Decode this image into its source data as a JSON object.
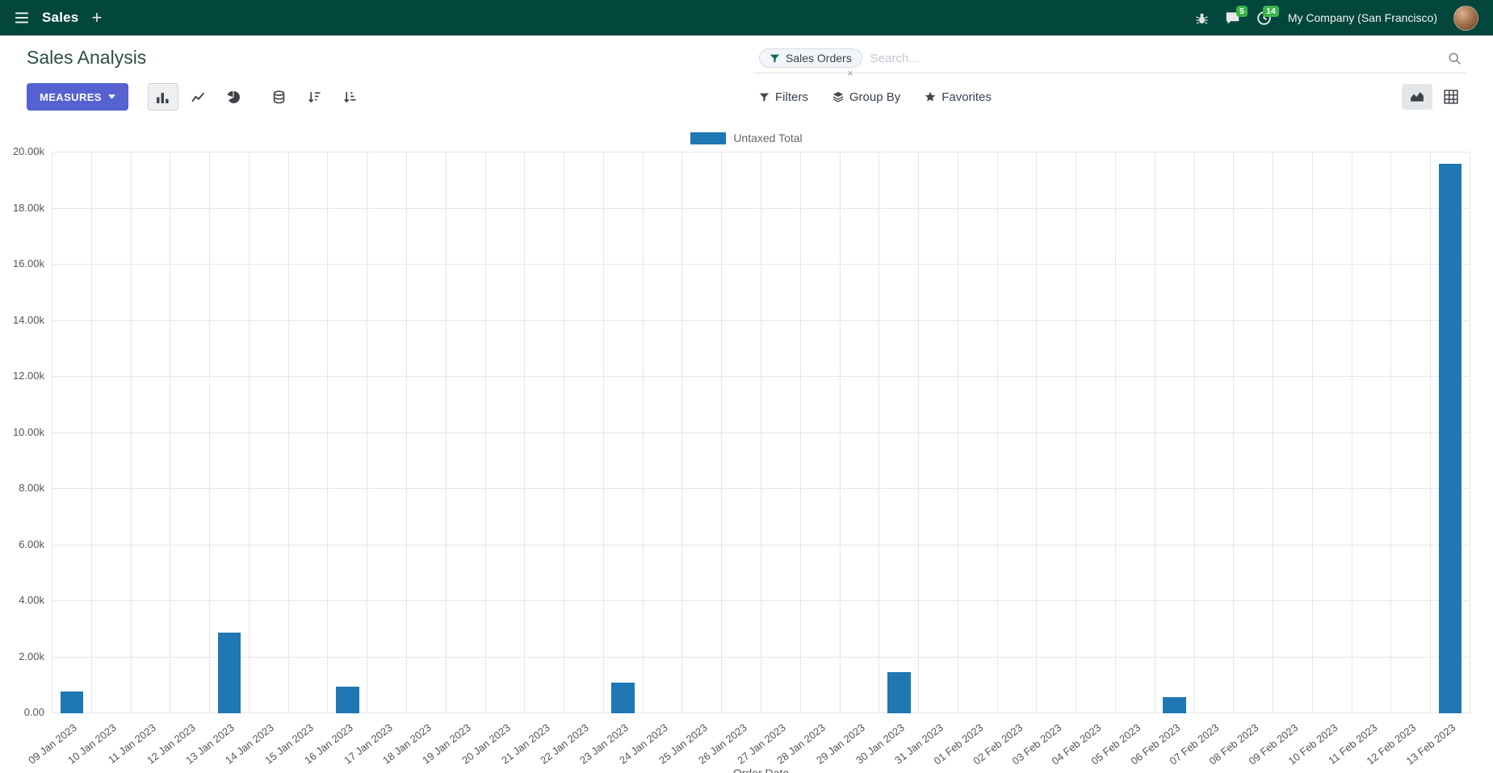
{
  "navbar": {
    "app_name": "Sales",
    "new_tab": "+",
    "message_count": "5",
    "activity_count": "14",
    "company": "My Company (San Francisco)"
  },
  "page": {
    "title": "Sales Analysis"
  },
  "search": {
    "facet_label": "Sales Orders",
    "facet_remove": "×",
    "placeholder": "Search..."
  },
  "toolbar": {
    "measures": "MEASURES",
    "filters": "Filters",
    "group_by": "Group By",
    "favorites": "Favorites"
  },
  "chart_data": {
    "type": "bar",
    "title": "",
    "xlabel": "Order Date",
    "ylabel": "",
    "ylim": [
      0,
      20000
    ],
    "ytick_step": 2000,
    "ytick_labels": [
      "0.00",
      "2.00k",
      "4.00k",
      "6.00k",
      "8.00k",
      "10.00k",
      "12.00k",
      "14.00k",
      "16.00k",
      "18.00k",
      "20.00k"
    ],
    "grid": true,
    "legend_position": "top",
    "categories": [
      "09 Jan 2023",
      "10 Jan 2023",
      "11 Jan 2023",
      "12 Jan 2023",
      "13 Jan 2023",
      "14 Jan 2023",
      "15 Jan 2023",
      "16 Jan 2023",
      "17 Jan 2023",
      "18 Jan 2023",
      "19 Jan 2023",
      "20 Jan 2023",
      "21 Jan 2023",
      "22 Jan 2023",
      "23 Jan 2023",
      "24 Jan 2023",
      "25 Jan 2023",
      "26 Jan 2023",
      "27 Jan 2023",
      "28 Jan 2023",
      "29 Jan 2023",
      "30 Jan 2023",
      "31 Jan 2023",
      "01 Feb 2023",
      "02 Feb 2023",
      "03 Feb 2023",
      "04 Feb 2023",
      "05 Feb 2023",
      "06 Feb 2023",
      "07 Feb 2023",
      "08 Feb 2023",
      "09 Feb 2023",
      "10 Feb 2023",
      "11 Feb 2023",
      "12 Feb 2023",
      "13 Feb 2023"
    ],
    "series": [
      {
        "name": "Untaxed Total",
        "color": "#1f77b4",
        "values": [
          780,
          0,
          0,
          0,
          2880,
          0,
          0,
          950,
          0,
          0,
          0,
          0,
          0,
          0,
          1080,
          0,
          0,
          0,
          0,
          0,
          0,
          1460,
          0,
          0,
          0,
          0,
          0,
          0,
          580,
          0,
          0,
          0,
          0,
          0,
          0,
          19600
        ]
      }
    ]
  }
}
